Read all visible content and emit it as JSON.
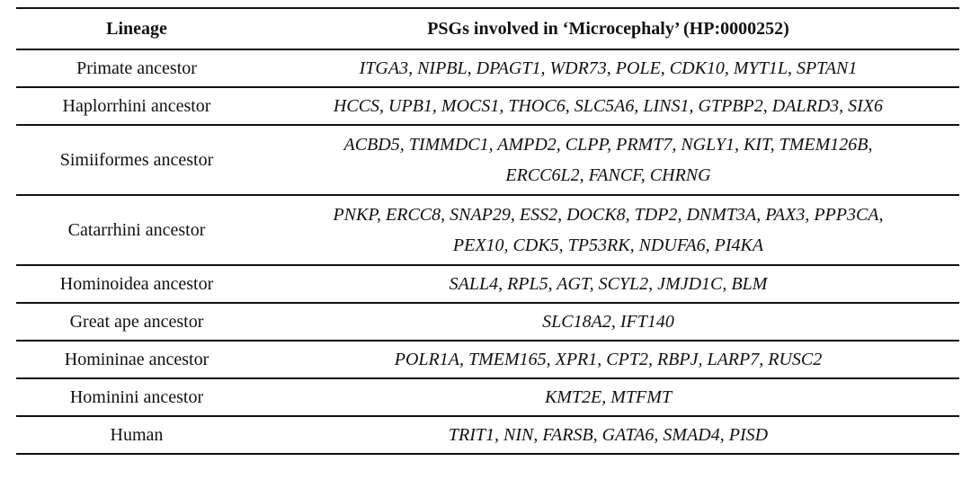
{
  "table": {
    "headers": {
      "lineage": "Lineage",
      "genes": "PSGs involved in ‘Microcephaly’ (HP:0000252)"
    },
    "rows": [
      {
        "lineage": "Primate ancestor",
        "gene_lines": [
          "ITGA3, NIPBL, DPAGT1, WDR73, POLE, CDK10, MYT1L, SPTAN1"
        ]
      },
      {
        "lineage": "Haplorrhini ancestor",
        "gene_lines": [
          "HCCS, UPB1, MOCS1, THOC6, SLC5A6, LINS1, GTPBP2, DALRD3, SIX6"
        ]
      },
      {
        "lineage": "Simiiformes ancestor",
        "gene_lines": [
          "ACBD5, TIMMDC1, AMPD2, CLPP, PRMT7, NGLY1, KIT, TMEM126B,",
          "ERCC6L2, FANCF, CHRNG"
        ]
      },
      {
        "lineage": "Catarrhini ancestor",
        "gene_lines": [
          "PNKP, ERCC8, SNAP29, ESS2, DOCK8, TDP2, DNMT3A, PAX3, PPP3CA,",
          "PEX10, CDK5, TP53RK, NDUFA6, PI4KA"
        ]
      },
      {
        "lineage": "Hominoidea ancestor",
        "gene_lines": [
          "SALL4, RPL5, AGT, SCYL2, JMJD1C, BLM"
        ]
      },
      {
        "lineage": "Great ape ancestor",
        "gene_lines": [
          "SLC18A2, IFT140"
        ]
      },
      {
        "lineage": "Homininae ancestor",
        "gene_lines": [
          "POLR1A, TMEM165, XPR1, CPT2, RBPJ, LARP7, RUSC2"
        ]
      },
      {
        "lineage": "Hominini ancestor",
        "gene_lines": [
          "KMT2E, MTFMT"
        ]
      },
      {
        "lineage": "Human",
        "gene_lines": [
          "TRIT1, NIN, FARSB, GATA6, SMAD4, PISD"
        ]
      }
    ]
  }
}
